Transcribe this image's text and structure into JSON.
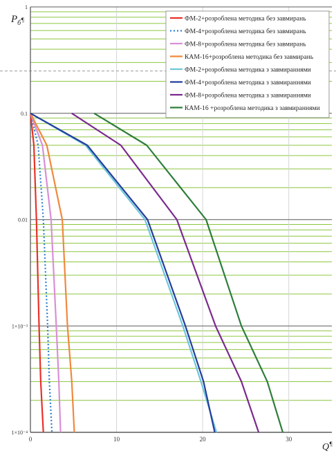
{
  "chart_data": {
    "type": "line",
    "ylabel": "P",
    "ylabel_sub": "б",
    "ylabel_suffix": "¶",
    "xlabel": "Q",
    "xlabel_suffix": "¶",
    "y_scale": "log",
    "ylim": [
      0.0001,
      1
    ],
    "xlim": [
      0,
      35
    ],
    "x_ticks": [
      {
        "value": 0,
        "label": "0"
      },
      {
        "value": 10,
        "label": "10"
      },
      {
        "value": 20,
        "label": "20"
      },
      {
        "value": 30,
        "label": "30"
      }
    ],
    "y_ticks": [
      {
        "value": 1,
        "label": "1"
      },
      {
        "value": 0.1,
        "label": "0.1"
      },
      {
        "value": 0.01,
        "label": "0.01"
      },
      {
        "value": 0.001,
        "label": "1×10⁻³"
      },
      {
        "value": 0.0001,
        "label": "1×10⁻⁴"
      }
    ],
    "grid": true,
    "legend_position": "top-right",
    "series": [
      {
        "name": "ФМ-2+розроблена методика без завмирань",
        "color": "#e8312a",
        "dash": "solid",
        "points": [
          [
            0,
            0.1
          ],
          [
            0.4,
            0.05
          ],
          [
            0.7,
            0.01
          ],
          [
            1.0,
            0.001
          ],
          [
            1.2,
            0.0003
          ],
          [
            1.5,
            0.0001
          ]
        ]
      },
      {
        "name": "ФМ-4+розроблена методика без завмирань",
        "color": "#2f7fd0",
        "dash": "dotted",
        "points": [
          [
            0,
            0.1
          ],
          [
            0.9,
            0.05
          ],
          [
            1.5,
            0.01
          ],
          [
            2.0,
            0.001
          ],
          [
            2.2,
            0.0003
          ],
          [
            2.5,
            0.0001
          ]
        ]
      },
      {
        "name": "ФМ-8+розроблена методика без завмирань",
        "color": "#d98fd6",
        "dash": "solid",
        "points": [
          [
            0,
            0.1
          ],
          [
            1.4,
            0.05
          ],
          [
            2.4,
            0.01
          ],
          [
            3.0,
            0.001
          ],
          [
            3.3,
            0.0003
          ],
          [
            3.5,
            0.0001
          ]
        ]
      },
      {
        "name": "КАМ-16+розроблена методика без завмирань",
        "color": "#f0883c",
        "dash": "solid",
        "points": [
          [
            0,
            0.1
          ],
          [
            1.9,
            0.05
          ],
          [
            3.7,
            0.01
          ],
          [
            4.3,
            0.001
          ],
          [
            4.8,
            0.0003
          ],
          [
            5.1,
            0.0001
          ]
        ]
      },
      {
        "name": "ФМ-2+розроблена методика з завмираннями",
        "color": "#6fc6dc",
        "dash": "solid",
        "points": [
          [
            0,
            0.1
          ],
          [
            6.4,
            0.05
          ],
          [
            13.3,
            0.01
          ],
          [
            17.7,
            0.001
          ],
          [
            19.8,
            0.0003
          ],
          [
            21.6,
            0.0001
          ]
        ]
      },
      {
        "name": "ФМ-4+розроблена методика з завмираннями",
        "color": "#253d9c",
        "dash": "solid",
        "points": [
          [
            0,
            0.1
          ],
          [
            6.6,
            0.05
          ],
          [
            13.6,
            0.01
          ],
          [
            18.0,
            0.001
          ],
          [
            20.1,
            0.0003
          ],
          [
            21.4,
            0.0001
          ]
        ]
      },
      {
        "name": "ФМ-8+розроблена методика з завмираннями",
        "color": "#7a2a8e",
        "dash": "solid",
        "points": [
          [
            4.8,
            0.1
          ],
          [
            10.5,
            0.05
          ],
          [
            17.0,
            0.01
          ],
          [
            21.5,
            0.001
          ],
          [
            24.5,
            0.0003
          ],
          [
            26.5,
            0.0001
          ]
        ]
      },
      {
        "name": "КАМ-16 +розроблена методика з завмираннями",
        "color": "#2e7d3a",
        "dash": "solid",
        "points": [
          [
            7.4,
            0.1
          ],
          [
            13.5,
            0.05
          ],
          [
            20.4,
            0.01
          ],
          [
            24.5,
            0.001
          ],
          [
            27.5,
            0.0003
          ],
          [
            29.3,
            0.0001
          ]
        ]
      }
    ]
  }
}
